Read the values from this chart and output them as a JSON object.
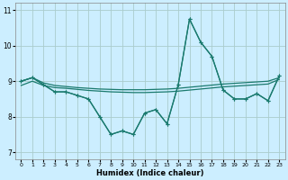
{
  "xlabel": "Humidex (Indice chaleur)",
  "bg_color": "#cceeff",
  "grid_color": "#aacccc",
  "line_color": "#1a7a6e",
  "xlim": [
    -0.5,
    23.5
  ],
  "ylim": [
    6.8,
    11.2
  ],
  "yticks": [
    7,
    8,
    9,
    10,
    11
  ],
  "xticks": [
    0,
    1,
    2,
    3,
    4,
    5,
    6,
    7,
    8,
    9,
    10,
    11,
    12,
    13,
    14,
    15,
    16,
    17,
    18,
    19,
    20,
    21,
    22,
    23
  ],
  "line_flat1": [
    9.0,
    9.1,
    8.95,
    8.88,
    8.85,
    8.82,
    8.8,
    8.78,
    8.77,
    8.76,
    8.76,
    8.76,
    8.77,
    8.78,
    8.8,
    8.83,
    8.86,
    8.89,
    8.92,
    8.94,
    8.96,
    8.98,
    9.0,
    9.1
  ],
  "line_flat2": [
    8.88,
    9.0,
    8.88,
    8.82,
    8.8,
    8.77,
    8.74,
    8.72,
    8.7,
    8.69,
    8.68,
    8.68,
    8.69,
    8.7,
    8.72,
    8.75,
    8.78,
    8.81,
    8.84,
    8.86,
    8.88,
    8.9,
    8.92,
    9.05
  ],
  "line_var1": [
    9.0,
    9.1,
    8.9,
    8.7,
    8.7,
    8.6,
    8.5,
    8.0,
    7.5,
    7.6,
    7.5,
    8.1,
    8.2,
    7.8,
    8.9,
    10.75,
    10.1,
    9.7,
    8.75,
    8.5,
    8.5,
    8.65,
    8.45,
    9.15
  ],
  "line_var2": [
    9.0,
    9.1,
    8.9,
    8.7,
    8.7,
    8.6,
    8.5,
    8.0,
    7.5,
    7.6,
    7.5,
    8.1,
    8.2,
    7.8,
    8.9,
    10.75,
    10.1,
    9.7,
    8.75,
    8.5,
    8.5,
    8.65,
    8.45,
    9.15
  ]
}
